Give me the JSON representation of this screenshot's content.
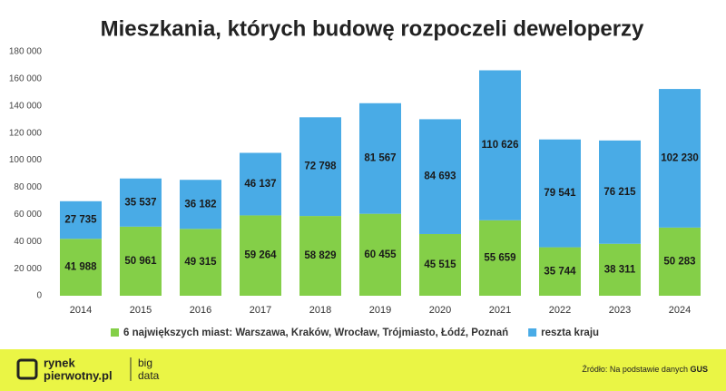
{
  "chart_data": {
    "type": "stacked_bar",
    "title": "Mieszkania, których budowę rozpoczeli deweloperzy",
    "categories": [
      "2014",
      "2015",
      "2016",
      "2017",
      "2018",
      "2019",
      "2020",
      "2021",
      "2022",
      "2023",
      "2024"
    ],
    "series": [
      {
        "name": "6 największych miast: Warszawa, Kraków, Wrocław, Trójmiasto, Łódź, Poznań",
        "color": "#84cf48",
        "values": [
          41988,
          50961,
          49315,
          59264,
          58829,
          60455,
          45515,
          55659,
          35744,
          38311,
          50283
        ],
        "value_labels": [
          "41 988",
          "50 961",
          "49 315",
          "59 264",
          "58 829",
          "60 455",
          "45 515",
          "55 659",
          "35 744",
          "38 311",
          "50 283"
        ]
      },
      {
        "name": "reszta kraju",
        "color": "#49abe6",
        "values": [
          27735,
          35537,
          36182,
          46137,
          72798,
          81567,
          84693,
          110626,
          79541,
          76215,
          102230
        ],
        "value_labels": [
          "27 735",
          "35 537",
          "36 182",
          "46 137",
          "72 798",
          "81 567",
          "84 693",
          "110 626",
          "79 541",
          "76 215",
          "102 230"
        ]
      }
    ],
    "ylim": [
      0,
      180000
    ],
    "yticks": [
      0,
      {
        "value": 20000,
        "label": "20 000"
      },
      {
        "value": 40000,
        "label": "40 000"
      },
      {
        "value": 60000,
        "label": "60 000"
      },
      {
        "value": 80000,
        "label": "80 000"
      },
      {
        "value": 100000,
        "label": "100 000"
      },
      {
        "value": 120000,
        "label": "120 000"
      },
      {
        "value": 140000,
        "label": "140 000"
      },
      {
        "value": 160000,
        "label": "160 000"
      },
      {
        "value": 180000,
        "label": "180 000"
      }
    ],
    "grid": false,
    "legend": "bottom"
  },
  "footer": {
    "brand_top": "rynek",
    "brand_bottom": "pierwotny.pl",
    "tag_top": "big",
    "tag_bottom": "data",
    "source": "Źródło: Na podstawie danych",
    "source_bold": "GUS"
  }
}
